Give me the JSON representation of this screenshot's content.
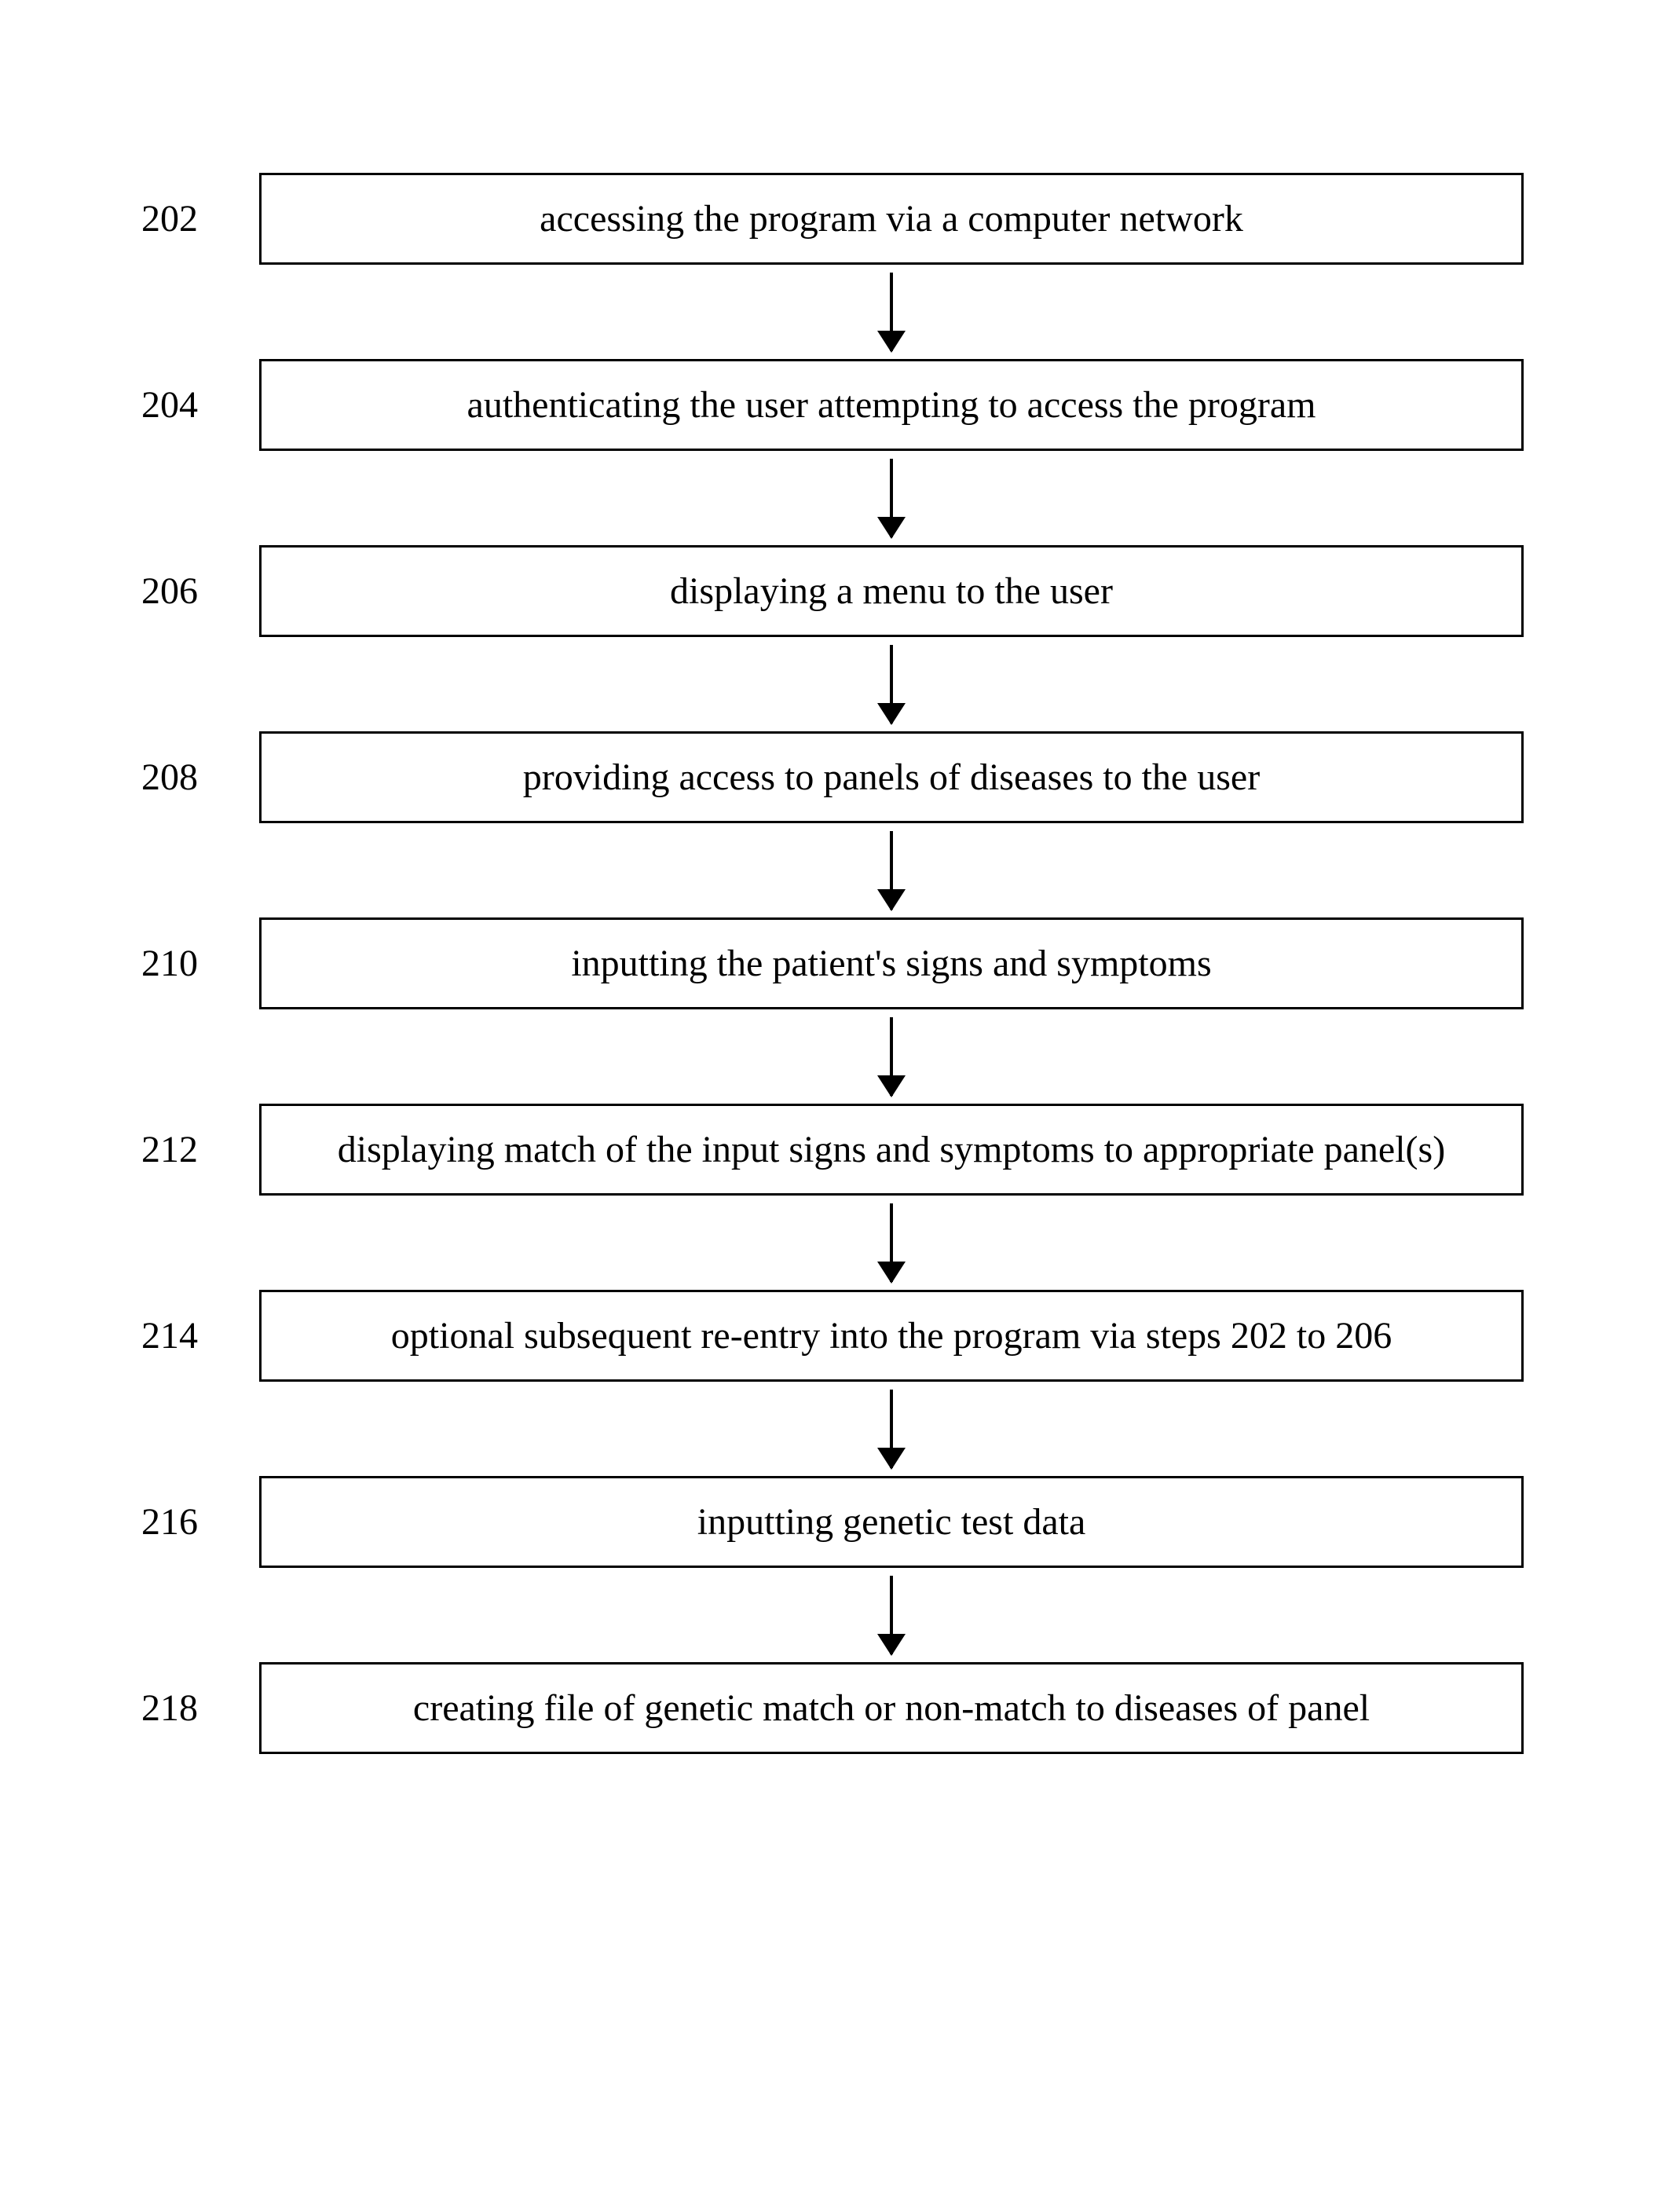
{
  "flowchart": {
    "type": "flowchart",
    "background_color": "#ffffff",
    "box_border_color": "#000000",
    "box_border_width": 3,
    "text_color": "#000000",
    "font_family": "Times New Roman",
    "font_size": 48,
    "arrow_color": "#000000",
    "arrow_line_width": 4,
    "arrow_head_size": 28,
    "steps": [
      {
        "number": "202",
        "text": "accessing the program via a computer network"
      },
      {
        "number": "204",
        "text": "authenticating the user attempting to access the program"
      },
      {
        "number": "206",
        "text": "displaying a menu to the user"
      },
      {
        "number": "208",
        "text": "providing access to panels of diseases to the user"
      },
      {
        "number": "210",
        "text": "inputting the patient's signs and symptoms"
      },
      {
        "number": "212",
        "text": "displaying match of the input signs and symptoms to appropriate panel(s)"
      },
      {
        "number": "214",
        "text": "optional subsequent re-entry into the program via steps 202 to 206"
      },
      {
        "number": "216",
        "text": "inputting genetic test data"
      },
      {
        "number": "218",
        "text": "creating file of genetic match or non-match to diseases of panel"
      }
    ]
  }
}
